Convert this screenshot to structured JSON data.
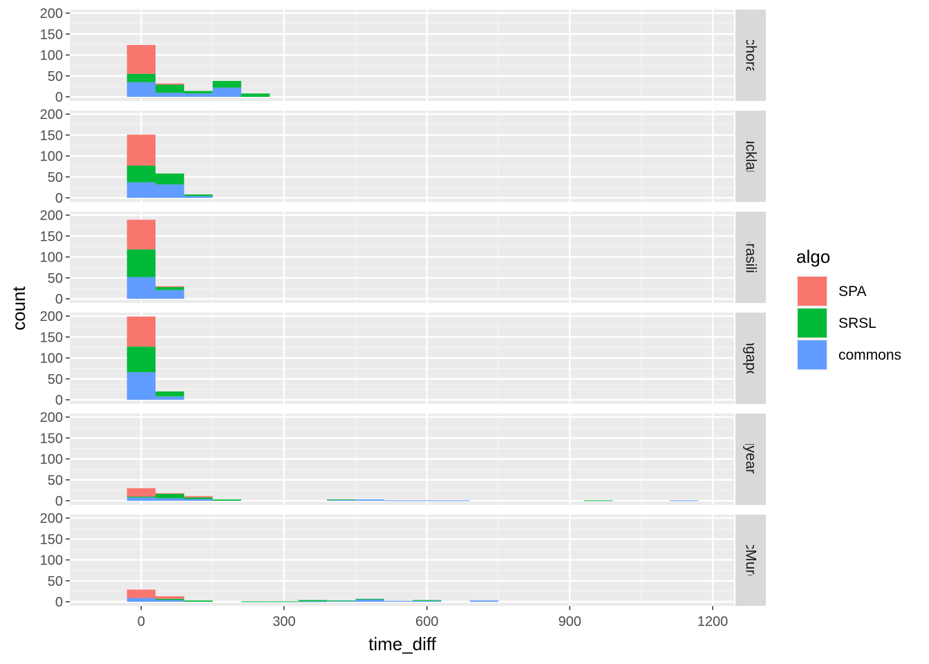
{
  "chart_data": {
    "type": "bar",
    "subtype": "faceted stacked histogram",
    "xlabel": "time_diff",
    "ylabel": "count",
    "xlim": [
      -150,
      1245
    ],
    "ylim": [
      0,
      210
    ],
    "x_ticks": [
      0,
      300,
      600,
      900,
      1200
    ],
    "y_ticks": [
      0,
      50,
      100,
      150,
      200
    ],
    "bin_width": 60,
    "grid": true,
    "legend": {
      "title": "algo",
      "position": "right",
      "entries": [
        {
          "name": "SPA",
          "color": "#F8766D"
        },
        {
          "name": "SRSL",
          "color": "#00BA38"
        },
        {
          "name": "commons",
          "color": "#619CFF"
        }
      ]
    },
    "stack_order_bottom_to_top": [
      "commons",
      "SRSL",
      "SPA"
    ],
    "facets": [
      {
        "label": "Anchorage",
        "bars": [
          {
            "x": 0,
            "commons": 35,
            "SRSL": 20,
            "SPA": 69
          },
          {
            "x": 60,
            "commons": 10,
            "SRSL": 19,
            "SPA": 3
          },
          {
            "x": 120,
            "commons": 8,
            "SRSL": 6,
            "SPA": 0
          },
          {
            "x": 180,
            "commons": 22,
            "SRSL": 16,
            "SPA": 0
          },
          {
            "x": 240,
            "commons": 0,
            "SRSL": 8,
            "SPA": 0
          }
        ]
      },
      {
        "label": "Auckland",
        "bars": [
          {
            "x": 0,
            "commons": 37,
            "SRSL": 40,
            "SPA": 74
          },
          {
            "x": 60,
            "commons": 32,
            "SRSL": 26,
            "SPA": 0
          },
          {
            "x": 120,
            "commons": 4,
            "SRSL": 4,
            "SPA": 0
          }
        ]
      },
      {
        "label": "Brasilia",
        "bars": [
          {
            "x": 0,
            "commons": 52,
            "SRSL": 66,
            "SPA": 71
          },
          {
            "x": 60,
            "commons": 21,
            "SRSL": 7,
            "SPA": 2
          }
        ]
      },
      {
        "label": "Singapore",
        "bars": [
          {
            "x": 0,
            "commons": 66,
            "SRSL": 61,
            "SPA": 72
          },
          {
            "x": 60,
            "commons": 8,
            "SRSL": 12,
            "SPA": 0
          }
        ]
      },
      {
        "label": "Longyearbyen",
        "bars": [
          {
            "x": 0,
            "commons": 8,
            "SRSL": 2,
            "SPA": 20
          },
          {
            "x": 60,
            "commons": 6,
            "SRSL": 11,
            "SPA": 1
          },
          {
            "x": 120,
            "commons": 4,
            "SRSL": 4,
            "SPA": 3
          },
          {
            "x": 180,
            "commons": 0,
            "SRSL": 3,
            "SPA": 0
          },
          {
            "x": 420,
            "commons": 2,
            "SRSL": 1,
            "SPA": 0
          },
          {
            "x": 480,
            "commons": 3,
            "SRSL": 0,
            "SPA": 0
          },
          {
            "x": 540,
            "commons": 1,
            "SRSL": 0,
            "SPA": 0
          },
          {
            "x": 600,
            "commons": 1,
            "SRSL": 0,
            "SPA": 0
          },
          {
            "x": 660,
            "commons": 1,
            "SRSL": 0,
            "SPA": 0
          },
          {
            "x": 960,
            "commons": 0,
            "SRSL": 1,
            "SPA": 0
          },
          {
            "x": 1140,
            "commons": 1,
            "SRSL": 0,
            "SPA": 0
          }
        ]
      },
      {
        "label": "McMurdo",
        "bars": [
          {
            "x": 0,
            "commons": 9,
            "SRSL": 0,
            "SPA": 20
          },
          {
            "x": 60,
            "commons": 4,
            "SRSL": 3,
            "SPA": 6
          },
          {
            "x": 120,
            "commons": 0,
            "SRSL": 3,
            "SPA": 0
          },
          {
            "x": 240,
            "commons": 0,
            "SRSL": 1,
            "SPA": 0
          },
          {
            "x": 300,
            "commons": 0,
            "SRSL": 1,
            "SPA": 0
          },
          {
            "x": 360,
            "commons": 1,
            "SRSL": 3,
            "SPA": 0
          },
          {
            "x": 420,
            "commons": 2,
            "SRSL": 1,
            "SPA": 0
          },
          {
            "x": 480,
            "commons": 6,
            "SRSL": 1,
            "SPA": 0
          },
          {
            "x": 540,
            "commons": 2,
            "SRSL": 0,
            "SPA": 0
          },
          {
            "x": 600,
            "commons": 2,
            "SRSL": 2,
            "SPA": 0
          },
          {
            "x": 720,
            "commons": 3,
            "SRSL": 0,
            "SPA": 0
          }
        ]
      }
    ]
  }
}
